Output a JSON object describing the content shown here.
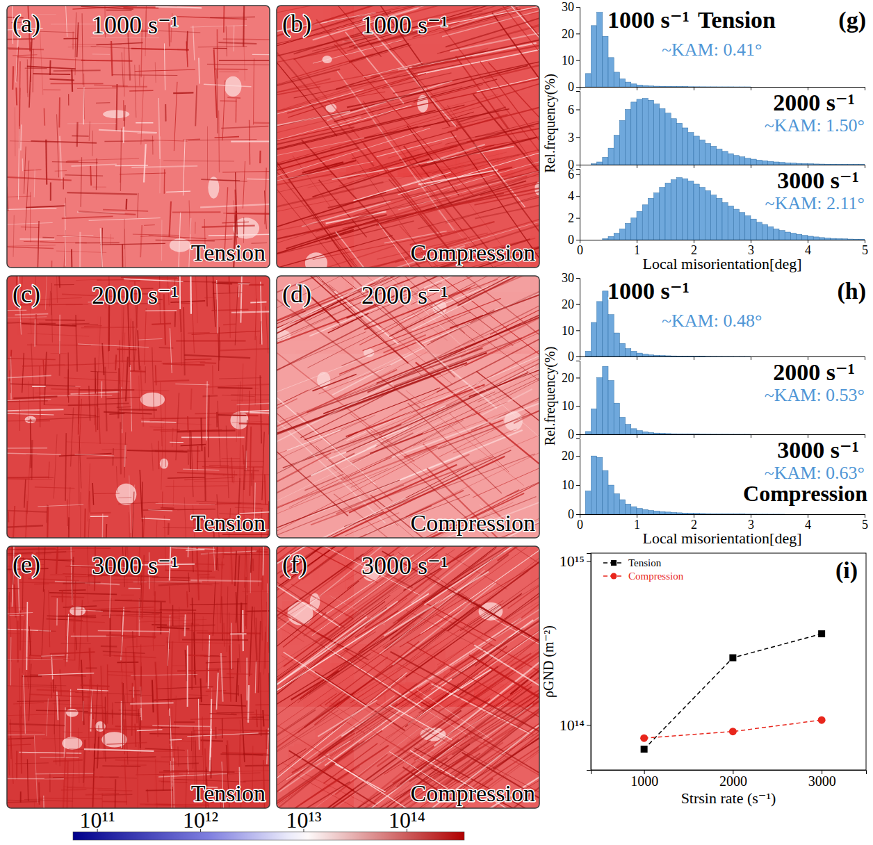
{
  "image_panels": {
    "panels": [
      {
        "letter": "(a)",
        "rate": "1000 s⁻¹",
        "mode": "Tension"
      },
      {
        "letter": "(b)",
        "rate": "1000 s⁻¹",
        "mode": "Compression"
      },
      {
        "letter": "(c)",
        "rate": "2000 s⁻¹",
        "mode": "Tension"
      },
      {
        "letter": "(d)",
        "rate": "2000 s⁻¹",
        "mode": "Compression"
      },
      {
        "letter": "(e)",
        "rate": "3000 s⁻¹",
        "mode": "Tension"
      },
      {
        "letter": "(f)",
        "rate": "3000 s⁻¹",
        "mode": "Compression"
      }
    ],
    "colorbar": {
      "range": [
        58000000000.0,
        360000000000000.0
      ],
      "log": true,
      "ticks": [
        {
          "value": 100000000000.0,
          "label": "10¹¹"
        },
        {
          "value": 1000000000000.0,
          "label": "10¹²"
        },
        {
          "value": 10000000000000.0,
          "label": "10¹³"
        },
        {
          "value": 100000000000000.0,
          "label": "10¹⁴"
        }
      ]
    }
  },
  "chart_data": [
    {
      "type": "histogram",
      "letter": "(g)",
      "mode": "Tension",
      "xlabel": "Local misorientation[deg]",
      "ylabel": "Rel.frequency(%)",
      "color": "#6fa8dc",
      "xlim": [
        0,
        5
      ],
      "xticks": [
        0,
        1,
        2,
        3,
        4,
        5
      ],
      "bins": [
        0,
        0.1,
        0.2,
        0.3,
        0.4,
        0.5,
        0.6,
        0.7,
        0.8,
        0.9,
        1,
        1.1,
        1.2,
        1.3,
        1.4,
        1.5,
        1.6,
        1.7,
        1.8,
        1.9,
        2,
        2.1,
        2.2,
        2.3,
        2.4,
        2.5,
        2.6,
        2.7,
        2.8,
        2.9,
        3,
        3.1,
        3.2,
        3.3,
        3.4,
        3.5,
        3.6,
        3.7,
        3.8,
        3.9,
        4,
        4.1,
        4.2,
        4.3,
        4.4,
        4.5,
        4.6,
        4.7,
        4.8,
        4.9,
        5
      ],
      "subplots": [
        {
          "label": "1000 s⁻¹",
          "annotation": "~KAM: 0.41°",
          "ylim": [
            0,
            30
          ],
          "yticks": [
            0,
            10,
            20,
            30
          ],
          "values": [
            0,
            5,
            23,
            28,
            19,
            11,
            5.5,
            3,
            1.8,
            1.1,
            0.7,
            0.5,
            0.35,
            0.25,
            0.2,
            0.15,
            0.12,
            0.1,
            0.08,
            0.06,
            0.05,
            0.04,
            0.03,
            0.03,
            0.02,
            0.02,
            0.02,
            0.01,
            0.01,
            0.01,
            0,
            0,
            0,
            0,
            0,
            0,
            0,
            0,
            0,
            0,
            0,
            0,
            0,
            0,
            0,
            0,
            0,
            0,
            0,
            0
          ]
        },
        {
          "label": "2000 s⁻¹",
          "annotation": "~KAM: 1.50°",
          "ylim": [
            0,
            8
          ],
          "yticks": [
            0,
            3,
            6
          ],
          "values": [
            0,
            0,
            0.1,
            0.3,
            0.8,
            1.8,
            3.2,
            4.8,
            6,
            6.8,
            7.1,
            7.2,
            7,
            6.6,
            6.1,
            5.6,
            5,
            4.5,
            4,
            3.5,
            3.1,
            2.7,
            2.3,
            2,
            1.7,
            1.45,
            1.2,
            1,
            0.85,
            0.7,
            0.6,
            0.5,
            0.42,
            0.35,
            0.3,
            0.25,
            0.2,
            0.17,
            0.14,
            0.12,
            0.1,
            0.08,
            0.07,
            0.06,
            0.05,
            0.04,
            0.04,
            0.03,
            0.03,
            0.02
          ]
        },
        {
          "label": "3000 s⁻¹",
          "annotation": "~KAM: 2.11°",
          "ylim": [
            0,
            6.5
          ],
          "yticks": [
            0,
            2,
            4,
            6
          ],
          "values": [
            0,
            0,
            0,
            0,
            0.1,
            0.3,
            0.6,
            1,
            1.5,
            2,
            2.6,
            3.2,
            3.8,
            4.3,
            4.8,
            5.2,
            5.5,
            5.7,
            5.6,
            5.4,
            5.1,
            4.8,
            4.5,
            4.1,
            3.8,
            3.4,
            3.1,
            2.8,
            2.5,
            2.2,
            1.9,
            1.6,
            1.4,
            1.2,
            1,
            0.85,
            0.7,
            0.6,
            0.5,
            0.4,
            0.32,
            0.26,
            0.2,
            0.16,
            0.12,
            0.1,
            0.08,
            0.06,
            0.05,
            0.04
          ]
        }
      ]
    },
    {
      "type": "histogram",
      "letter": "(h)",
      "mode": "Compression",
      "xlabel": "Local misorientation[deg]",
      "ylabel": "Rel.frequency(%)",
      "color": "#6fa8dc",
      "xlim": [
        0,
        5
      ],
      "xticks": [
        0,
        1,
        2,
        3,
        4,
        5
      ],
      "bins": [
        0,
        0.1,
        0.2,
        0.3,
        0.4,
        0.5,
        0.6,
        0.7,
        0.8,
        0.9,
        1,
        1.1,
        1.2,
        1.3,
        1.4,
        1.5,
        1.6,
        1.7,
        1.8,
        1.9,
        2,
        2.1,
        2.2,
        2.3,
        2.4,
        2.5,
        2.6,
        2.7,
        2.8,
        2.9,
        3,
        3.1,
        3.2,
        3.3,
        3.4,
        3.5,
        3.6,
        3.7,
        3.8,
        3.9,
        4,
        4.1,
        4.2,
        4.3,
        4.4,
        4.5,
        4.6,
        4.7,
        4.8,
        4.9,
        5
      ],
      "subplots": [
        {
          "label": "1000 s⁻¹",
          "annotation": "~KAM: 0.48°",
          "ylim": [
            0,
            30
          ],
          "yticks": [
            0,
            10,
            20,
            30
          ],
          "values": [
            0,
            2,
            13,
            21,
            25,
            16,
            9,
            5,
            3,
            2,
            1.3,
            0.9,
            0.6,
            0.45,
            0.35,
            0.28,
            0.22,
            0.18,
            0.14,
            0.11,
            0.09,
            0.07,
            0.06,
            0.05,
            0.04,
            0.03,
            0.03,
            0.02,
            0.02,
            0.01,
            0,
            0,
            0,
            0,
            0,
            0,
            0,
            0,
            0,
            0,
            0,
            0,
            0,
            0,
            0,
            0,
            0,
            0,
            0,
            0
          ]
        },
        {
          "label": "2000 s⁻¹",
          "annotation": "~KAM: 0.53°",
          "ylim": [
            0,
            26
          ],
          "yticks": [
            0,
            10,
            20
          ],
          "values": [
            0,
            1,
            9,
            20,
            24,
            19,
            11,
            6,
            3.5,
            2,
            1.3,
            0.9,
            0.6,
            0.45,
            0.35,
            0.27,
            0.2,
            0.16,
            0.12,
            0.1,
            0.08,
            0.06,
            0.05,
            0.04,
            0.03,
            0.03,
            0.02,
            0.02,
            0.01,
            0.01,
            0,
            0,
            0,
            0,
            0,
            0,
            0,
            0,
            0,
            0,
            0,
            0,
            0,
            0,
            0,
            0,
            0,
            0,
            0,
            0
          ]
        },
        {
          "label": "3000 s⁻¹",
          "annotation": "~KAM: 0.63°",
          "ylim": [
            0,
            26
          ],
          "yticks": [
            0,
            10,
            20
          ],
          "values": [
            0,
            8,
            20,
            19.5,
            15,
            10,
            7,
            5,
            3.5,
            2.6,
            2,
            1.6,
            1.3,
            1.1,
            0.9,
            0.75,
            0.6,
            0.5,
            0.42,
            0.35,
            0.3,
            0.25,
            0.2,
            0.17,
            0.14,
            0.12,
            0.1,
            0.08,
            0.06,
            0.05,
            0.04,
            0.03,
            0.03,
            0.02,
            0.02,
            0.01,
            0,
            0,
            0,
            0,
            0,
            0,
            0,
            0,
            0,
            0,
            0,
            0,
            0,
            0
          ]
        }
      ]
    },
    {
      "type": "line",
      "letter": "(i)",
      "xlabel": "Strsin rate (s⁻¹)",
      "ylabel": "ρGND (m⁻²)",
      "log": "y",
      "legend": "upper left",
      "x": [
        1000,
        2000,
        3000
      ],
      "xlim": [
        400,
        3500
      ],
      "xticks": [
        1000,
        2000,
        3000
      ],
      "ylim": [
        53000000000000.0,
        1120000000000000.0
      ],
      "yticks": [
        {
          "value": 100000000000000.0,
          "label": "10¹⁴"
        },
        {
          "value": 1000000000000000.0,
          "label": "10¹⁵"
        }
      ],
      "series": [
        {
          "name": "Tension",
          "color": "#000000",
          "marker": "square",
          "line_style": "dashed",
          "values": [
            71000000000000.0,
            257000000000000.0,
            360000000000000.0
          ]
        },
        {
          "name": "Compression",
          "color": "#e8261c",
          "marker": "circle",
          "line_style": "dashed",
          "values": [
            83000000000000.0,
            91000000000000.0,
            107000000000000.0
          ]
        }
      ]
    }
  ]
}
